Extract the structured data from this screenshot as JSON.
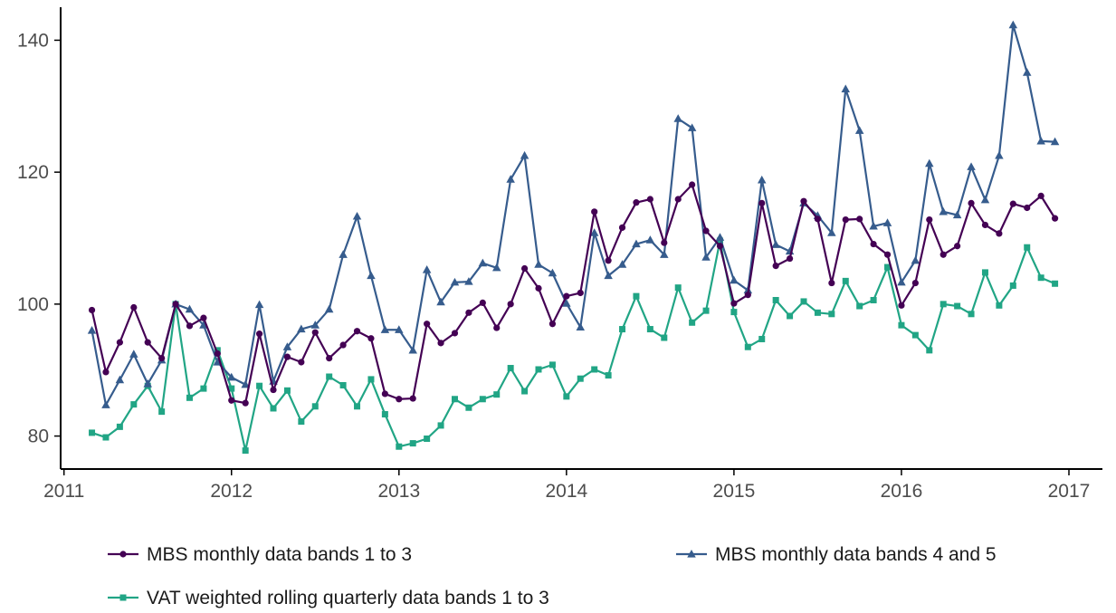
{
  "chart_data": {
    "type": "line",
    "title": "",
    "xlabel": "",
    "ylabel": "",
    "xlim": [
      2010.98,
      2017.2
    ],
    "ylim": [
      75,
      145
    ],
    "x_ticks": [
      2011,
      2012,
      2013,
      2014,
      2015,
      2016,
      2017
    ],
    "y_ticks": [
      80,
      100,
      120,
      140
    ],
    "grid": false,
    "legend_position": "bottom",
    "x": [
      "2011-03",
      "2011-04",
      "2011-05",
      "2011-06",
      "2011-07",
      "2011-08",
      "2011-09",
      "2011-10",
      "2011-11",
      "2011-12",
      "2012-01",
      "2012-02",
      "2012-03",
      "2012-04",
      "2012-05",
      "2012-06",
      "2012-07",
      "2012-08",
      "2012-09",
      "2012-10",
      "2012-11",
      "2012-12",
      "2013-01",
      "2013-02",
      "2013-03",
      "2013-04",
      "2013-05",
      "2013-06",
      "2013-07",
      "2013-08",
      "2013-09",
      "2013-10",
      "2013-11",
      "2013-12",
      "2014-01",
      "2014-02",
      "2014-03",
      "2014-04",
      "2014-05",
      "2014-06",
      "2014-07",
      "2014-08",
      "2014-09",
      "2014-10",
      "2014-11",
      "2014-12",
      "2015-01",
      "2015-02",
      "2015-03",
      "2015-04",
      "2015-05",
      "2015-06",
      "2015-07",
      "2015-08",
      "2015-09",
      "2015-10",
      "2015-11",
      "2015-12",
      "2016-01",
      "2016-02",
      "2016-03",
      "2016-04",
      "2016-05",
      "2016-06",
      "2016-07",
      "2016-08",
      "2016-09",
      "2016-10",
      "2016-11",
      "2016-12"
    ],
    "series": [
      {
        "name": "MBS monthly data bands 1 to 3",
        "color": "#440154",
        "marker": "circle",
        "values": [
          99.1,
          89.7,
          94.2,
          99.5,
          94.2,
          91.8,
          100.0,
          96.7,
          97.9,
          92.5,
          85.4,
          85.0,
          95.5,
          87.0,
          92.0,
          91.2,
          95.7,
          91.8,
          93.8,
          95.9,
          94.8,
          86.4,
          85.6,
          85.7,
          97.0,
          94.1,
          95.6,
          98.7,
          100.2,
          96.4,
          100.0,
          105.4,
          102.4,
          97.0,
          101.2,
          101.7,
          114.0,
          106.6,
          111.6,
          115.4,
          115.9,
          109.3,
          115.9,
          118.1,
          111.1,
          108.8,
          100.1,
          101.4,
          115.3,
          105.8,
          106.9,
          115.6,
          112.9,
          103.2,
          112.8,
          112.9,
          109.1,
          107.5,
          99.8,
          103.2,
          112.8,
          107.5,
          108.8,
          115.3,
          112.0,
          110.7,
          115.2,
          114.6,
          116.4,
          113.0
        ]
      },
      {
        "name": "MBS monthly data bands 4 and 5",
        "color": "#365c8d",
        "marker": "triangle",
        "values": [
          96.0,
          84.7,
          88.5,
          92.4,
          87.9,
          91.5,
          100.0,
          99.2,
          96.8,
          91.2,
          88.9,
          87.8,
          99.9,
          88.3,
          93.5,
          96.2,
          96.8,
          99.2,
          107.5,
          113.3,
          104.3,
          96.1,
          96.1,
          93.0,
          105.2,
          100.3,
          103.3,
          103.4,
          106.2,
          105.5,
          118.9,
          122.5,
          106.0,
          104.7,
          100.1,
          96.5,
          110.8,
          104.3,
          106.0,
          109.1,
          109.7,
          107.5,
          128.1,
          126.7,
          107.1,
          110.1,
          103.6,
          102.1,
          118.8,
          109.0,
          108.0,
          115.3,
          113.4,
          110.8,
          132.6,
          126.3,
          111.8,
          112.3,
          103.3,
          106.6,
          121.3,
          114.0,
          113.5,
          120.8,
          115.8,
          122.5,
          142.3,
          135.1,
          124.7,
          124.6
        ]
      },
      {
        "name": "VAT weighted rolling quarterly data bands 1 to 3",
        "color": "#21a585",
        "marker": "square",
        "values": [
          80.5,
          79.8,
          81.4,
          84.8,
          87.6,
          83.7,
          100.0,
          85.8,
          87.2,
          93.0,
          87.2,
          77.8,
          87.6,
          84.2,
          86.9,
          82.2,
          84.5,
          89.0,
          87.7,
          84.5,
          88.6,
          83.3,
          78.4,
          78.9,
          79.6,
          81.6,
          85.6,
          84.3,
          85.6,
          86.3,
          90.3,
          86.8,
          90.1,
          90.8,
          86.0,
          88.7,
          90.1,
          89.2,
          96.2,
          101.2,
          96.2,
          94.9,
          102.5,
          97.2,
          99.0,
          109.6,
          98.8,
          93.5,
          94.7,
          100.6,
          98.2,
          100.4,
          98.7,
          98.5,
          103.5,
          99.7,
          100.6,
          105.6,
          96.8,
          95.3,
          93.0,
          100.0,
          99.7,
          98.5,
          104.8,
          99.8,
          102.8,
          108.6,
          104.0,
          103.1
        ]
      }
    ]
  }
}
